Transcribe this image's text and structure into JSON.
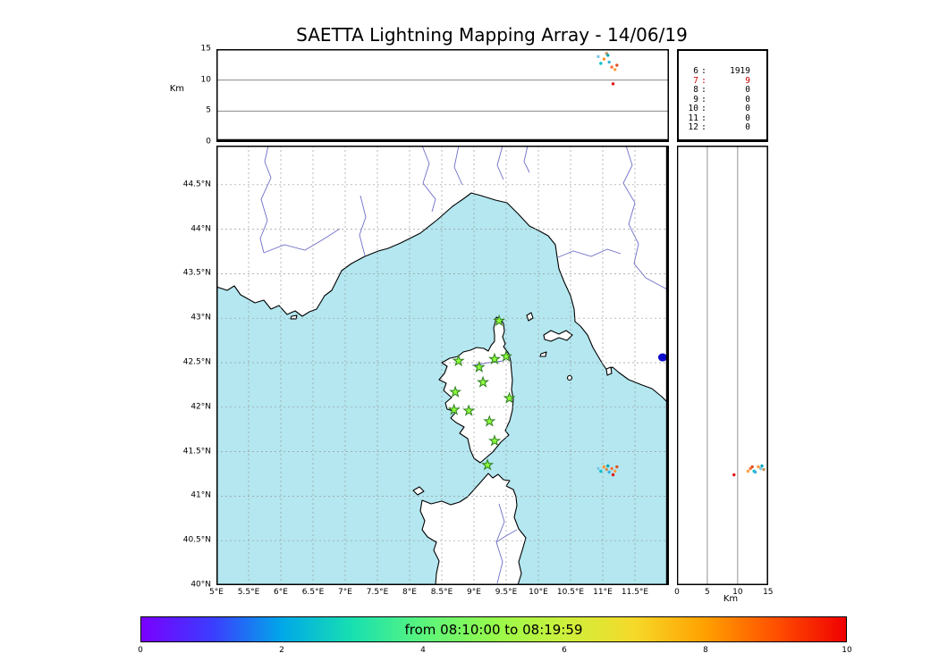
{
  "title": "SAETTA Lightning Mapping Array - 14/06/19",
  "colors": {
    "sea": "#b4e7f0",
    "land": "#ffffff",
    "coastline": "#000000",
    "river": "#6e6ec8",
    "graticule": "#9a9a9a",
    "station_fill": "#8dff3c",
    "station_edge": "#2e7d1e",
    "lake": "#0a0acc",
    "stats_highlight": "#cc0000"
  },
  "alt_panel": {
    "ylabel": "Km",
    "yticks": [
      "15",
      "10",
      "5",
      "0"
    ],
    "grid_km": [
      5,
      10
    ],
    "alt_max_km": 15
  },
  "stats_box": {
    "rows": [
      {
        "label": "6",
        "value": "1919",
        "color": "#000000"
      },
      {
        "label": "7",
        "value": "9",
        "color": "#cc0000"
      },
      {
        "label": "8",
        "value": "0",
        "color": "#000000"
      },
      {
        "label": "9",
        "value": "0",
        "color": "#000000"
      },
      {
        "label": "10",
        "value": "0",
        "color": "#000000"
      },
      {
        "label": "11",
        "value": "0",
        "color": "#000000"
      },
      {
        "label": "12",
        "value": "0",
        "color": "#000000"
      }
    ]
  },
  "map": {
    "lat_ticks": [
      "44.5°N",
      "44°N",
      "43.5°N",
      "43°N",
      "42.5°N",
      "42°N",
      "41.5°N",
      "41°N",
      "40.5°N",
      "40°N"
    ],
    "lon_ticks": [
      "5°E",
      "5.5°E",
      "6°E",
      "6.5°E",
      "7°E",
      "7.5°E",
      "8°E",
      "8.5°E",
      "9°E",
      "9.5°E",
      "10°E",
      "10.5°E",
      "11°E",
      "11.5°E"
    ]
  },
  "hist_panel": {
    "xlabel": "Km",
    "xticks": [
      "0",
      "5",
      "10",
      "15"
    ],
    "grid_km": [
      5,
      10
    ],
    "alt_max_km": 15
  },
  "colorbar": {
    "label": "from 08:10:00 to 08:19:59",
    "ticks": [
      "0",
      "2",
      "4",
      "6",
      "8",
      "10"
    ],
    "range": [
      0,
      10
    ],
    "gradient": [
      "#7a00ff",
      "#3c3cff",
      "#00a8e8",
      "#18e0b0",
      "#5af57d",
      "#96fa4b",
      "#cdf03c",
      "#f6d929",
      "#ffa000",
      "#ff5000",
      "#f00000"
    ]
  },
  "chart_data": {
    "type": "scatter",
    "title": "SAETTA Lightning Mapping Array - 14/06/19",
    "lon_range_deg_e": [
      5,
      12.03
    ],
    "lat_range_deg_n": [
      40,
      44.94
    ],
    "alt_range_km": [
      0,
      15
    ],
    "stations": [
      {
        "lon": 9.39,
        "lat": 42.97
      },
      {
        "lon": 8.76,
        "lat": 42.52
      },
      {
        "lon": 9.08,
        "lat": 42.45
      },
      {
        "lon": 9.32,
        "lat": 42.54
      },
      {
        "lon": 9.5,
        "lat": 42.57
      },
      {
        "lon": 9.14,
        "lat": 42.28
      },
      {
        "lon": 8.71,
        "lat": 42.17
      },
      {
        "lon": 9.55,
        "lat": 42.1
      },
      {
        "lon": 8.69,
        "lat": 41.97
      },
      {
        "lon": 8.92,
        "lat": 41.96
      },
      {
        "lon": 9.24,
        "lat": 41.84
      },
      {
        "lon": 9.32,
        "lat": 41.62
      },
      {
        "lon": 9.21,
        "lat": 41.35
      }
    ],
    "sources": [
      {
        "lon": 10.93,
        "lat": 41.31,
        "alt_km": 13.8,
        "color": "#7ec8e8"
      },
      {
        "lon": 10.97,
        "lat": 41.28,
        "alt_km": 12.7,
        "color": "#00c0cc"
      },
      {
        "lon": 11.02,
        "lat": 41.33,
        "alt_km": 13.4,
        "color": "#ff9830"
      },
      {
        "lon": 11.06,
        "lat": 41.3,
        "alt_km": 14.3,
        "color": "#c89058"
      },
      {
        "lon": 11.1,
        "lat": 41.27,
        "alt_km": 12.9,
        "color": "#38b0e0"
      },
      {
        "lon": 11.08,
        "lat": 41.34,
        "alt_km": 14.0,
        "color": "#00a8b8"
      },
      {
        "lon": 11.14,
        "lat": 41.31,
        "alt_km": 12.1,
        "color": "#ff7038"
      },
      {
        "lon": 11.19,
        "lat": 41.28,
        "alt_km": 11.7,
        "color": "#ffa040"
      },
      {
        "lon": 11.22,
        "lat": 41.33,
        "alt_km": 12.4,
        "color": "#e05020"
      },
      {
        "lon": 11.16,
        "lat": 41.24,
        "alt_km": 9.4,
        "color": "#e01818"
      }
    ],
    "lake_marker": {
      "lon": 11.93,
      "lat": 42.56
    }
  }
}
